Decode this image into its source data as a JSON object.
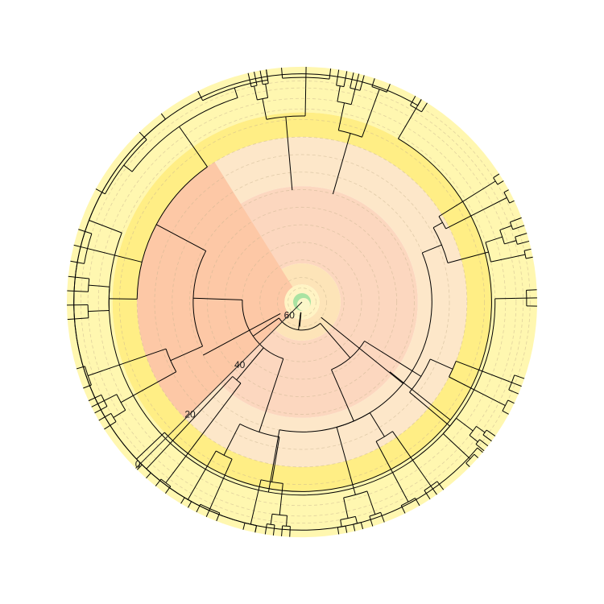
{
  "diagram": {
    "type": "circular-time-tree",
    "scale": {
      "max_age": 67,
      "labels": [
        "0",
        "20",
        "40",
        "60"
      ],
      "label_values": [
        0,
        20,
        40,
        60
      ],
      "label_angle_deg": 225
    },
    "time_bands": [
      {
        "from": 0,
        "to": 13,
        "color": "#fff7b0"
      },
      {
        "from": 13,
        "to": 20,
        "color": "#ffee85"
      },
      {
        "from": 20,
        "to": 34,
        "color": "#fde7c9"
      },
      {
        "from": 34,
        "to": 56,
        "color": "#fcd7bf"
      },
      {
        "from": 56,
        "to": 62,
        "color": "#fde4b8"
      },
      {
        "from": 62,
        "to": 67,
        "color": "#fff4c4"
      }
    ],
    "highlight_wedge": {
      "from_age": 20,
      "to_age": 62,
      "start_deg": 225,
      "end_deg": 328,
      "color": "#fdc8a6"
    },
    "center_dot_color": "#a9e3a2",
    "grid_ring_color": "#c9b58f",
    "ring_ages": [
      2,
      4,
      6,
      9,
      12,
      15,
      20,
      25,
      30,
      35,
      40,
      45,
      50,
      55,
      60,
      63
    ],
    "tree": {
      "age": 64,
      "start_deg": 0,
      "children": [
        {
          "age": 60,
          "start_deg": 310,
          "children": [
            {
              "age": 35,
              "start_deg": 330,
              "children": [
                {
                  "age": 14,
                  "start_deg": 340,
                  "children": [
                    {
                      "age": 8,
                      "start_deg": 346,
                      "children": [
                        {
                          "n": 2
                        },
                        {
                          "n": 2
                        }
                      ]
                    },
                    {
                      "age": 6,
                      "start_deg": 352,
                      "children": [
                        {
                          "n": 3
                        }
                      ]
                    }
                  ]
                },
                {
                  "age": 17,
                  "start_deg": 2,
                  "children": [
                    {
                      "age": 9,
                      "start_deg": 8,
                      "children": [
                        {
                          "n": 2
                        },
                        {
                          "n": 3
                        }
                      ]
                    },
                    {
                      "age": 5,
                      "start_deg": 16,
                      "children": [
                        {
                          "n": 2
                        }
                      ]
                    }
                  ]
                },
                {
                  "age": 13,
                  "start_deg": 24,
                  "children": [
                    {
                      "age": 6,
                      "start_deg": 28,
                      "children": [
                        {
                          "n": 3
                        }
                      ]
                    },
                    {
                      "age": 4,
                      "start_deg": 33,
                      "children": [
                        {
                          "n": 2
                        }
                      ]
                    }
                  ]
                }
              ]
            },
            {
              "age": 30,
              "start_deg": 40,
              "children": [
                {
                  "age": 24,
                  "start_deg": 44,
                  "children": [
                    {
                      "age": 21,
                      "start_deg": 46,
                      "children": [
                        {
                          "age": 4,
                          "start_deg": 56,
                          "children": [
                            {
                              "n": 2
                            }
                          ]
                        },
                        {
                          "age": 3,
                          "start_deg": 60,
                          "children": [
                            {
                              "n": 2
                            }
                          ]
                        }
                      ]
                    },
                    {
                      "age": 12,
                      "start_deg": 66,
                      "children": [
                        {
                          "age": 7,
                          "start_deg": 68,
                          "children": [
                            {
                              "n": 2
                            },
                            {
                              "n": 2
                            }
                          ]
                        },
                        {
                          "age": 4,
                          "start_deg": 76,
                          "children": [
                            {
                              "n": 2
                            }
                          ]
                        }
                      ]
                    }
                  ]
                },
                {
                  "age": 12,
                  "start_deg": 80,
                  "children": [
                    {
                      "age": 6,
                      "start_deg": 86,
                      "children": [
                        {
                          "n": 3
                        }
                      ]
                    },
                    {
                      "age": 4,
                      "start_deg": 92,
                      "children": [
                        {
                          "n": 2
                        }
                      ]
                    }
                  ]
                }
              ]
            }
          ]
        },
        {
          "age": 59,
          "start_deg": 96,
          "children": [
            {
              "age": 46,
              "start_deg": 98,
              "children": [
                {
                  "age": 27,
                  "start_deg": 102,
                  "children": [
                    {
                      "age": 20,
                      "start_deg": 104,
                      "children": [
                        {
                          "age": 6,
                          "start_deg": 108,
                          "children": [
                            {
                              "n": 3
                            }
                          ]
                        },
                        {
                          "age": 4,
                          "start_deg": 114,
                          "children": [
                            {
                              "n": 2
                            }
                          ]
                        }
                      ]
                    },
                    {
                      "age": 12,
                      "start_deg": 120,
                      "children": [
                        {
                          "age": 6,
                          "start_deg": 124,
                          "children": [
                            {
                              "n": 2
                            },
                            {
                              "n": 2
                            }
                          ]
                        },
                        {
                          "age": 3,
                          "start_deg": 130,
                          "children": [
                            {
                              "n": 2
                            }
                          ]
                        }
                      ]
                    }
                  ]
                },
                {
                  "age": 30,
                  "start_deg": 136,
                  "children": [
                    {
                      "age": 22,
                      "start_deg": 140,
                      "children": [
                        {
                          "age": 6,
                          "start_deg": 142,
                          "children": [
                            {
                              "n": 3
                            }
                          ]
                        },
                        {
                          "age": 5,
                          "start_deg": 148,
                          "children": [
                            {
                              "n": 2
                            }
                          ]
                        }
                      ]
                    },
                    {
                      "age": 10,
                      "start_deg": 156,
                      "children": [
                        {
                          "age": 6,
                          "start_deg": 158,
                          "children": [
                            {
                              "n": 2
                            }
                          ]
                        },
                        {
                          "age": 4,
                          "start_deg": 164,
                          "children": [
                            {
                              "n": 2
                            },
                            {
                              "n": 2
                            }
                          ]
                        }
                      ]
                    }
                  ]
                }
              ]
            },
            {
              "age": 50,
              "start_deg": 172,
              "children": [
                {
                  "age": 28,
                  "start_deg": 176,
                  "children": [
                    {
                      "age": 15,
                      "start_deg": 180,
                      "children": [
                        {
                          "age": 6,
                          "start_deg": 182,
                          "children": [
                            {
                              "n": 2
                            },
                            {
                              "n": 2
                            }
                          ]
                        },
                        {
                          "age": 4,
                          "start_deg": 190,
                          "children": [
                            {
                              "n": 2
                            }
                          ]
                        }
                      ]
                    },
                    {
                      "age": 18,
                      "start_deg": 196,
                      "children": [
                        {
                          "age": 5,
                          "start_deg": 200,
                          "children": [
                            {
                              "n": 3
                            }
                          ]
                        },
                        {
                          "age": 4,
                          "start_deg": 208,
                          "children": [
                            {
                              "n": 2
                            }
                          ]
                        }
                      ]
                    }
                  ]
                },
                {
                  "age": 38,
                  "start_deg": 212,
                  "children": [
                    {
                      "age": 5,
                      "start_deg": 214,
                      "children": [
                        {
                          "n": 2
                        }
                      ]
                    },
                    {
                      "age": 4,
                      "start_deg": 220,
                      "children": [
                        {
                          "n": 2
                        }
                      ]
                    }
                  ]
                },
                {
                  "age": 36,
                  "start_deg": 226,
                  "children": [
                    {
                      "age": 26,
                      "start_deg": 232,
                      "children": [
                        {
                          "age": 8,
                          "start_deg": 236,
                          "children": [
                            {
                              "n": 2
                            },
                            {
                              "n": 3
                            }
                          ]
                        },
                        {
                          "age": 5,
                          "start_deg": 246,
                          "children": [
                            {
                              "n": 2
                            }
                          ]
                        }
                      ]
                    },
                    {
                      "age": 20,
                      "start_deg": 256,
                      "children": [
                        {
                          "age": 12,
                          "start_deg": 264,
                          "children": [
                            {
                              "n": 2
                            },
                            {
                              "n": 2
                            }
                          ]
                        },
                        {
                          "age": 8,
                          "start_deg": 278,
                          "children": [
                            {
                              "n": 3
                            }
                          ]
                        },
                        {
                          "age": 6,
                          "start_deg": 290,
                          "children": [
                            {
                              "n": 2
                            },
                            {
                              "n": 2
                            }
                          ]
                        }
                      ]
                    }
                  ]
                }
              ]
            }
          ]
        }
      ]
    }
  }
}
